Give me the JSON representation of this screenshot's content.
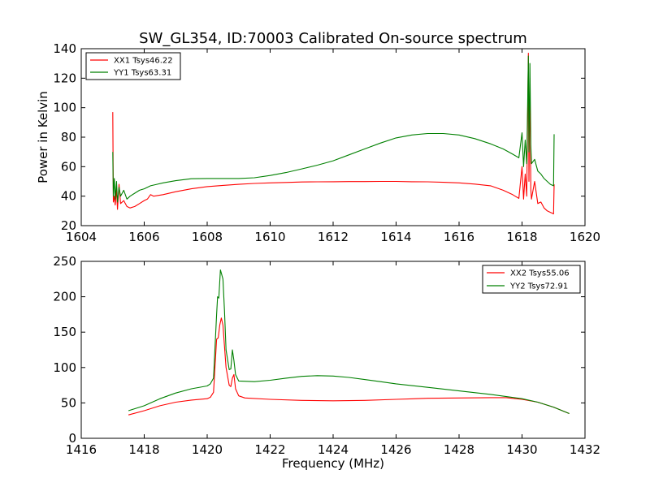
{
  "chart_data": [
    {
      "type": "line",
      "title": "SW_GL354, ID:70003 Calibrated On-source spectrum",
      "xlabel": "",
      "ylabel": "Power in Kelvin",
      "xlim": [
        1604,
        1620
      ],
      "ylim": [
        20,
        140
      ],
      "xticks": [
        "1604",
        "1606",
        "1608",
        "1610",
        "1612",
        "1614",
        "1616",
        "1618",
        "1620"
      ],
      "yticks": [
        "20",
        "40",
        "60",
        "80",
        "100",
        "120",
        "140"
      ],
      "legend_position": "top-left",
      "grid": false,
      "series": [
        {
          "name": "XX1 Tsys46.22",
          "color": "#ff0000",
          "points": [
            [
              1605.0,
              97
            ],
            [
              1605.02,
              36
            ],
            [
              1605.05,
              40
            ],
            [
              1605.08,
              34
            ],
            [
              1605.12,
              45
            ],
            [
              1605.15,
              31
            ],
            [
              1605.2,
              48
            ],
            [
              1605.25,
              35
            ],
            [
              1605.35,
              37
            ],
            [
              1605.45,
              33
            ],
            [
              1605.55,
              32
            ],
            [
              1605.7,
              33
            ],
            [
              1605.85,
              35
            ],
            [
              1606.0,
              37
            ],
            [
              1606.1,
              38
            ],
            [
              1606.2,
              41
            ],
            [
              1606.3,
              40
            ],
            [
              1606.6,
              41
            ],
            [
              1607.0,
              43
            ],
            [
              1607.5,
              45
            ],
            [
              1608.0,
              46.5
            ],
            [
              1608.5,
              47.3
            ],
            [
              1609.0,
              48
            ],
            [
              1609.5,
              48.6
            ],
            [
              1610.0,
              49
            ],
            [
              1610.5,
              49.3
            ],
            [
              1611.0,
              49.6
            ],
            [
              1611.5,
              49.7
            ],
            [
              1612.0,
              49.8
            ],
            [
              1612.5,
              49.9
            ],
            [
              1613.0,
              49.9
            ],
            [
              1613.5,
              50
            ],
            [
              1614.0,
              50
            ],
            [
              1614.5,
              49.8
            ],
            [
              1615.0,
              49.7
            ],
            [
              1615.5,
              49.4
            ],
            [
              1616.0,
              49
            ],
            [
              1616.5,
              48.2
            ],
            [
              1617.0,
              47
            ],
            [
              1617.4,
              44
            ],
            [
              1617.7,
              41
            ],
            [
              1617.9,
              38.5
            ],
            [
              1618.0,
              60
            ],
            [
              1618.05,
              38
            ],
            [
              1618.1,
              55
            ],
            [
              1618.15,
              40
            ],
            [
              1618.2,
              137
            ],
            [
              1618.22,
              50
            ],
            [
              1618.25,
              120
            ],
            [
              1618.28,
              45
            ],
            [
              1618.3,
              38
            ],
            [
              1618.4,
              50
            ],
            [
              1618.5,
              35
            ],
            [
              1618.6,
              36
            ],
            [
              1618.7,
              32
            ],
            [
              1618.8,
              30
            ],
            [
              1618.9,
              29
            ],
            [
              1619.0,
              28
            ],
            [
              1619.02,
              48
            ]
          ]
        },
        {
          "name": "YY1 Tsys63.31",
          "color": "#008000",
          "points": [
            [
              1605.0,
              70
            ],
            [
              1605.02,
              40
            ],
            [
              1605.05,
              52
            ],
            [
              1605.08,
              38
            ],
            [
              1605.12,
              50
            ],
            [
              1605.15,
              36
            ],
            [
              1605.2,
              46
            ],
            [
              1605.25,
              40
            ],
            [
              1605.35,
              44
            ],
            [
              1605.45,
              38
            ],
            [
              1605.55,
              40
            ],
            [
              1605.7,
              42
            ],
            [
              1605.85,
              44
            ],
            [
              1606.0,
              45
            ],
            [
              1606.1,
              46
            ],
            [
              1606.2,
              47
            ],
            [
              1606.4,
              48
            ],
            [
              1606.6,
              49
            ],
            [
              1607.0,
              50.5
            ],
            [
              1607.5,
              51.8
            ],
            [
              1608.0,
              52
            ],
            [
              1608.5,
              52
            ],
            [
              1609.0,
              52
            ],
            [
              1609.5,
              52.5
            ],
            [
              1610.0,
              54
            ],
            [
              1610.5,
              56
            ],
            [
              1611.0,
              58.5
            ],
            [
              1611.5,
              61
            ],
            [
              1612.0,
              64
            ],
            [
              1612.5,
              68
            ],
            [
              1613.0,
              72
            ],
            [
              1613.5,
              76
            ],
            [
              1614.0,
              79.5
            ],
            [
              1614.5,
              81.5
            ],
            [
              1615.0,
              82.5
            ],
            [
              1615.5,
              82.5
            ],
            [
              1616.0,
              81.5
            ],
            [
              1616.5,
              79
            ],
            [
              1617.0,
              75.5
            ],
            [
              1617.4,
              72
            ],
            [
              1617.7,
              68.5
            ],
            [
              1617.9,
              66
            ],
            [
              1618.0,
              83
            ],
            [
              1618.05,
              60
            ],
            [
              1618.1,
              78
            ],
            [
              1618.15,
              62
            ],
            [
              1618.2,
              135
            ],
            [
              1618.22,
              70
            ],
            [
              1618.25,
              130
            ],
            [
              1618.28,
              75
            ],
            [
              1618.3,
              62
            ],
            [
              1618.4,
              65
            ],
            [
              1618.5,
              57
            ],
            [
              1618.6,
              55
            ],
            [
              1618.7,
              52
            ],
            [
              1618.8,
              50
            ],
            [
              1618.9,
              48
            ],
            [
              1619.0,
              47
            ],
            [
              1619.02,
              82
            ]
          ]
        }
      ]
    },
    {
      "type": "line",
      "title": "",
      "xlabel": "Frequency (MHz)",
      "ylabel": "",
      "xlim": [
        1416,
        1432
      ],
      "ylim": [
        0,
        250
      ],
      "xticks": [
        "1416",
        "1418",
        "1420",
        "1422",
        "1424",
        "1426",
        "1428",
        "1430",
        "1432"
      ],
      "yticks": [
        "0",
        "50",
        "100",
        "150",
        "200",
        "250"
      ],
      "legend_position": "top-right",
      "grid": false,
      "series": [
        {
          "name": "XX2 Tsys55.06",
          "color": "#ff0000",
          "points": [
            [
              1417.5,
              33
            ],
            [
              1418.0,
              39
            ],
            [
              1418.5,
              46
            ],
            [
              1419.0,
              51
            ],
            [
              1419.5,
              54
            ],
            [
              1420.0,
              56
            ],
            [
              1420.1,
              58
            ],
            [
              1420.2,
              65
            ],
            [
              1420.3,
              140
            ],
            [
              1420.35,
              142
            ],
            [
              1420.4,
              160
            ],
            [
              1420.45,
              170
            ],
            [
              1420.5,
              160
            ],
            [
              1420.55,
              130
            ],
            [
              1420.6,
              100
            ],
            [
              1420.7,
              75
            ],
            [
              1420.75,
              73
            ],
            [
              1420.8,
              85
            ],
            [
              1420.85,
              90
            ],
            [
              1420.9,
              70
            ],
            [
              1421.0,
              60
            ],
            [
              1421.2,
              57
            ],
            [
              1422.0,
              55
            ],
            [
              1423.0,
              53.5
            ],
            [
              1424.0,
              53
            ],
            [
              1425.0,
              53.5
            ],
            [
              1426.0,
              55
            ],
            [
              1427.0,
              56.5
            ],
            [
              1428.0,
              57
            ],
            [
              1429.0,
              57.5
            ],
            [
              1429.5,
              57.5
            ],
            [
              1430.0,
              55
            ],
            [
              1430.5,
              51
            ],
            [
              1431.0,
              44
            ],
            [
              1431.5,
              35
            ]
          ]
        },
        {
          "name": "YY2 Tsys72.91",
          "color": "#008000",
          "points": [
            [
              1417.5,
              39
            ],
            [
              1418.0,
              46
            ],
            [
              1418.5,
              56
            ],
            [
              1419.0,
              64
            ],
            [
              1419.5,
              70
            ],
            [
              1420.0,
              74
            ],
            [
              1420.1,
              77
            ],
            [
              1420.2,
              85
            ],
            [
              1420.3,
              175
            ],
            [
              1420.33,
              200
            ],
            [
              1420.37,
              198
            ],
            [
              1420.42,
              238
            ],
            [
              1420.5,
              225
            ],
            [
              1420.55,
              180
            ],
            [
              1420.6,
              125
            ],
            [
              1420.7,
              97
            ],
            [
              1420.75,
              98
            ],
            [
              1420.8,
              125
            ],
            [
              1420.85,
              110
            ],
            [
              1420.9,
              90
            ],
            [
              1421.0,
              81
            ],
            [
              1421.5,
              80
            ],
            [
              1422.0,
              82
            ],
            [
              1422.5,
              85
            ],
            [
              1423.0,
              87.5
            ],
            [
              1423.5,
              88.5
            ],
            [
              1424.0,
              88
            ],
            [
              1424.5,
              86
            ],
            [
              1425.0,
              83
            ],
            [
              1425.5,
              80
            ],
            [
              1426.0,
              77
            ],
            [
              1427.0,
              72
            ],
            [
              1428.0,
              67
            ],
            [
              1429.0,
              62
            ],
            [
              1430.0,
              56
            ],
            [
              1430.5,
              51
            ],
            [
              1431.0,
              44
            ],
            [
              1431.5,
              35
            ]
          ]
        }
      ]
    }
  ]
}
